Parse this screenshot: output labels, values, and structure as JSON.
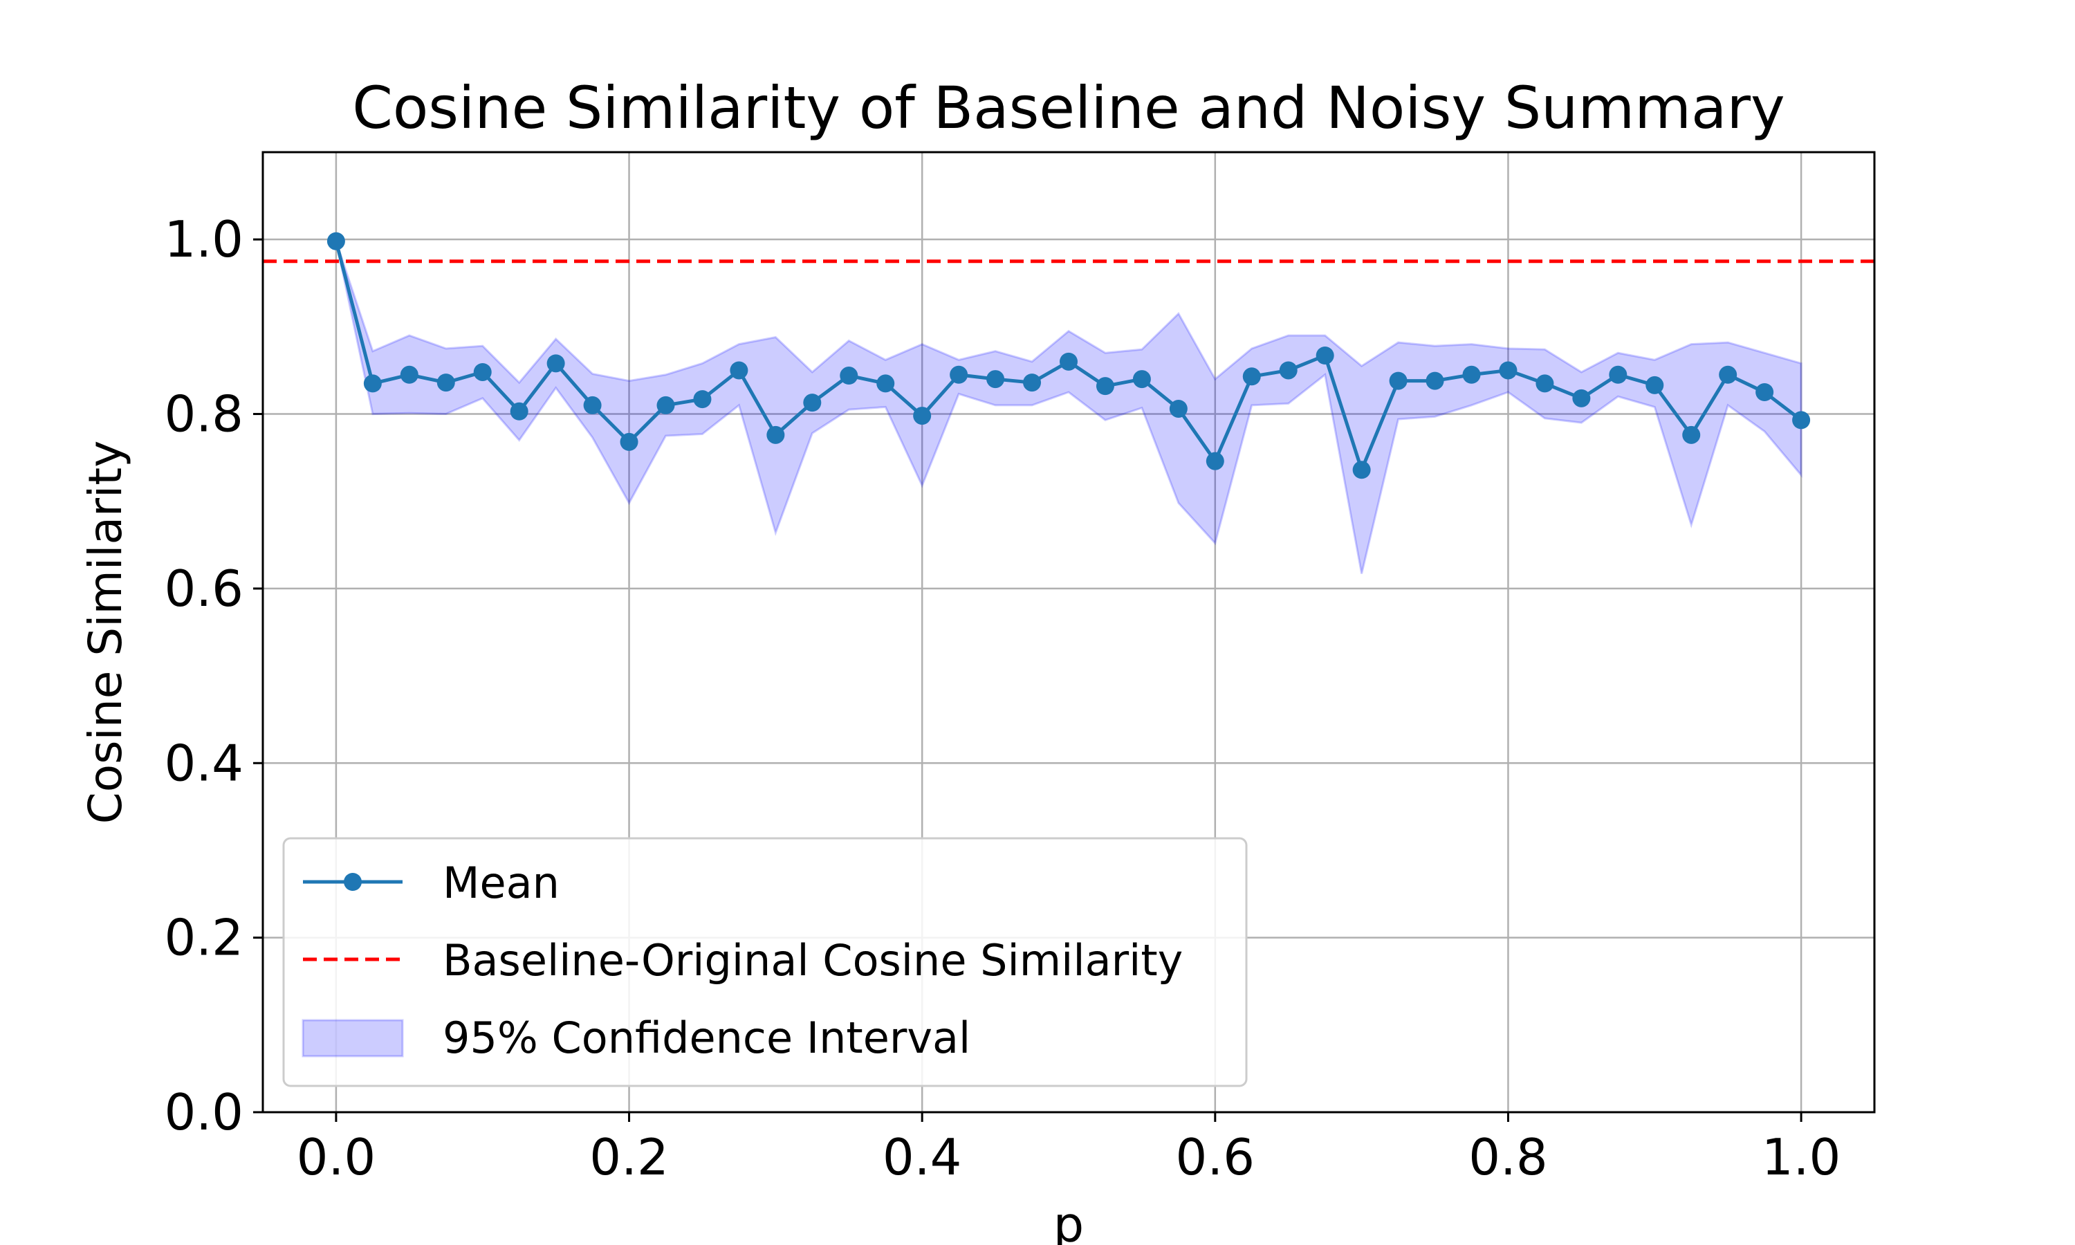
{
  "chart_data": {
    "type": "line",
    "title": "Cosine Similarity of Baseline and Noisy Summary",
    "xlabel": "p",
    "ylabel": "Cosine Similarity",
    "xlim": [
      -0.05,
      1.05
    ],
    "ylim": [
      0.0,
      1.1
    ],
    "xticks": [
      0.0,
      0.2,
      0.4,
      0.6,
      0.8,
      1.0
    ],
    "xtick_labels": [
      "0.0",
      "0.2",
      "0.4",
      "0.6",
      "0.8",
      "1.0"
    ],
    "yticks": [
      0.0,
      0.2,
      0.4,
      0.6,
      0.8,
      1.0
    ],
    "ytick_labels": [
      "0.0",
      "0.2",
      "0.4",
      "0.6",
      "0.8",
      "1.0"
    ],
    "grid": true,
    "legend_position": "lower-left",
    "x": [
      0.0,
      0.025,
      0.05,
      0.075,
      0.1,
      0.125,
      0.15,
      0.175,
      0.2,
      0.225,
      0.25,
      0.275,
      0.3,
      0.325,
      0.35,
      0.375,
      0.4,
      0.425,
      0.45,
      0.475,
      0.5,
      0.525,
      0.55,
      0.575,
      0.6,
      0.625,
      0.65,
      0.675,
      0.7,
      0.725,
      0.75,
      0.775,
      0.8,
      0.825,
      0.85,
      0.875,
      0.9,
      0.925,
      0.95,
      0.975,
      1.0
    ],
    "series": [
      {
        "name": "Mean",
        "color": "#1f77b4",
        "marker": "circle",
        "values": [
          0.998,
          0.835,
          0.845,
          0.836,
          0.848,
          0.803,
          0.858,
          0.81,
          0.768,
          0.81,
          0.817,
          0.85,
          0.776,
          0.813,
          0.844,
          0.835,
          0.798,
          0.845,
          0.84,
          0.836,
          0.86,
          0.832,
          0.84,
          0.806,
          0.746,
          0.843,
          0.85,
          0.867,
          0.736,
          0.838,
          0.838,
          0.845,
          0.85,
          0.835,
          0.818,
          0.845,
          0.833,
          0.776,
          0.845,
          0.825,
          0.793
        ]
      },
      {
        "name": "Baseline-Original Cosine Similarity",
        "color": "#ff0000",
        "style": "dashed",
        "value": 0.975
      },
      {
        "name": "95% Confidence Interval",
        "color": "#0000ff",
        "fill_opacity": 0.2,
        "lower": [
          0.998,
          0.8,
          0.801,
          0.8,
          0.818,
          0.77,
          0.83,
          0.773,
          0.698,
          0.775,
          0.777,
          0.81,
          0.664,
          0.778,
          0.805,
          0.808,
          0.718,
          0.823,
          0.81,
          0.81,
          0.825,
          0.793,
          0.807,
          0.698,
          0.652,
          0.81,
          0.812,
          0.845,
          0.617,
          0.794,
          0.797,
          0.81,
          0.825,
          0.795,
          0.79,
          0.82,
          0.808,
          0.673,
          0.81,
          0.78,
          0.73
        ],
        "upper": [
          0.998,
          0.872,
          0.89,
          0.875,
          0.878,
          0.836,
          0.886,
          0.846,
          0.838,
          0.845,
          0.858,
          0.88,
          0.888,
          0.848,
          0.884,
          0.862,
          0.88,
          0.862,
          0.872,
          0.86,
          0.895,
          0.87,
          0.874,
          0.915,
          0.84,
          0.875,
          0.89,
          0.89,
          0.855,
          0.882,
          0.878,
          0.88,
          0.875,
          0.874,
          0.848,
          0.87,
          0.862,
          0.88,
          0.882,
          0.87,
          0.858
        ]
      }
    ]
  }
}
